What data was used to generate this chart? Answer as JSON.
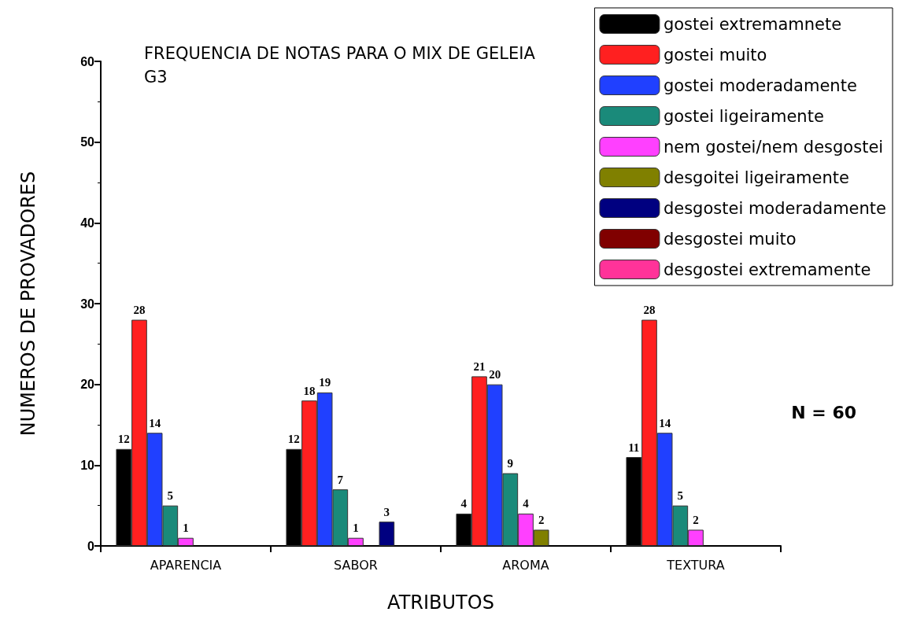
{
  "chart_data": {
    "type": "bar",
    "title": "FREQUENCIA DE NOTAS PARA O MIX DE GELEIA G3",
    "xlabel": "ATRIBUTOS",
    "ylabel": "NUMEROS DE PROVADORES",
    "categories": [
      "APARENCIA",
      "SABOR",
      "AROMA",
      "TEXTURA"
    ],
    "series": [
      {
        "name": "gostei extremamnete",
        "color": "#000000",
        "values": [
          12,
          12,
          4,
          11
        ]
      },
      {
        "name": "gostei muito",
        "color": "#ff2020",
        "values": [
          28,
          18,
          21,
          28
        ]
      },
      {
        "name": "gostei moderadamente",
        "color": "#2040ff",
        "values": [
          14,
          19,
          20,
          14
        ]
      },
      {
        "name": "gostei ligeiramente",
        "color": "#1a8a7a",
        "values": [
          5,
          7,
          9,
          5
        ]
      },
      {
        "name": "nem gostei/nem desgostei",
        "color": "#ff40ff",
        "values": [
          1,
          1,
          4,
          2
        ]
      },
      {
        "name": "desgoitei ligeiramente",
        "color": "#808000",
        "values": [
          null,
          null,
          2,
          null
        ]
      },
      {
        "name": "desgostei moderadamente",
        "color": "#000080",
        "values": [
          null,
          3,
          null,
          null
        ]
      },
      {
        "name": "desgostei muito",
        "color": "#800000",
        "values": [
          null,
          null,
          null,
          null
        ]
      },
      {
        "name": "desgostei extremamente",
        "color": "#ff3399",
        "values": [
          null,
          null,
          null,
          null
        ]
      }
    ],
    "ylim": [
      0,
      60
    ],
    "yticks": [
      0,
      10,
      20,
      30,
      40,
      50,
      60
    ],
    "data_labels": true,
    "legend": "top right",
    "annotations": [
      "N = 60"
    ]
  }
}
